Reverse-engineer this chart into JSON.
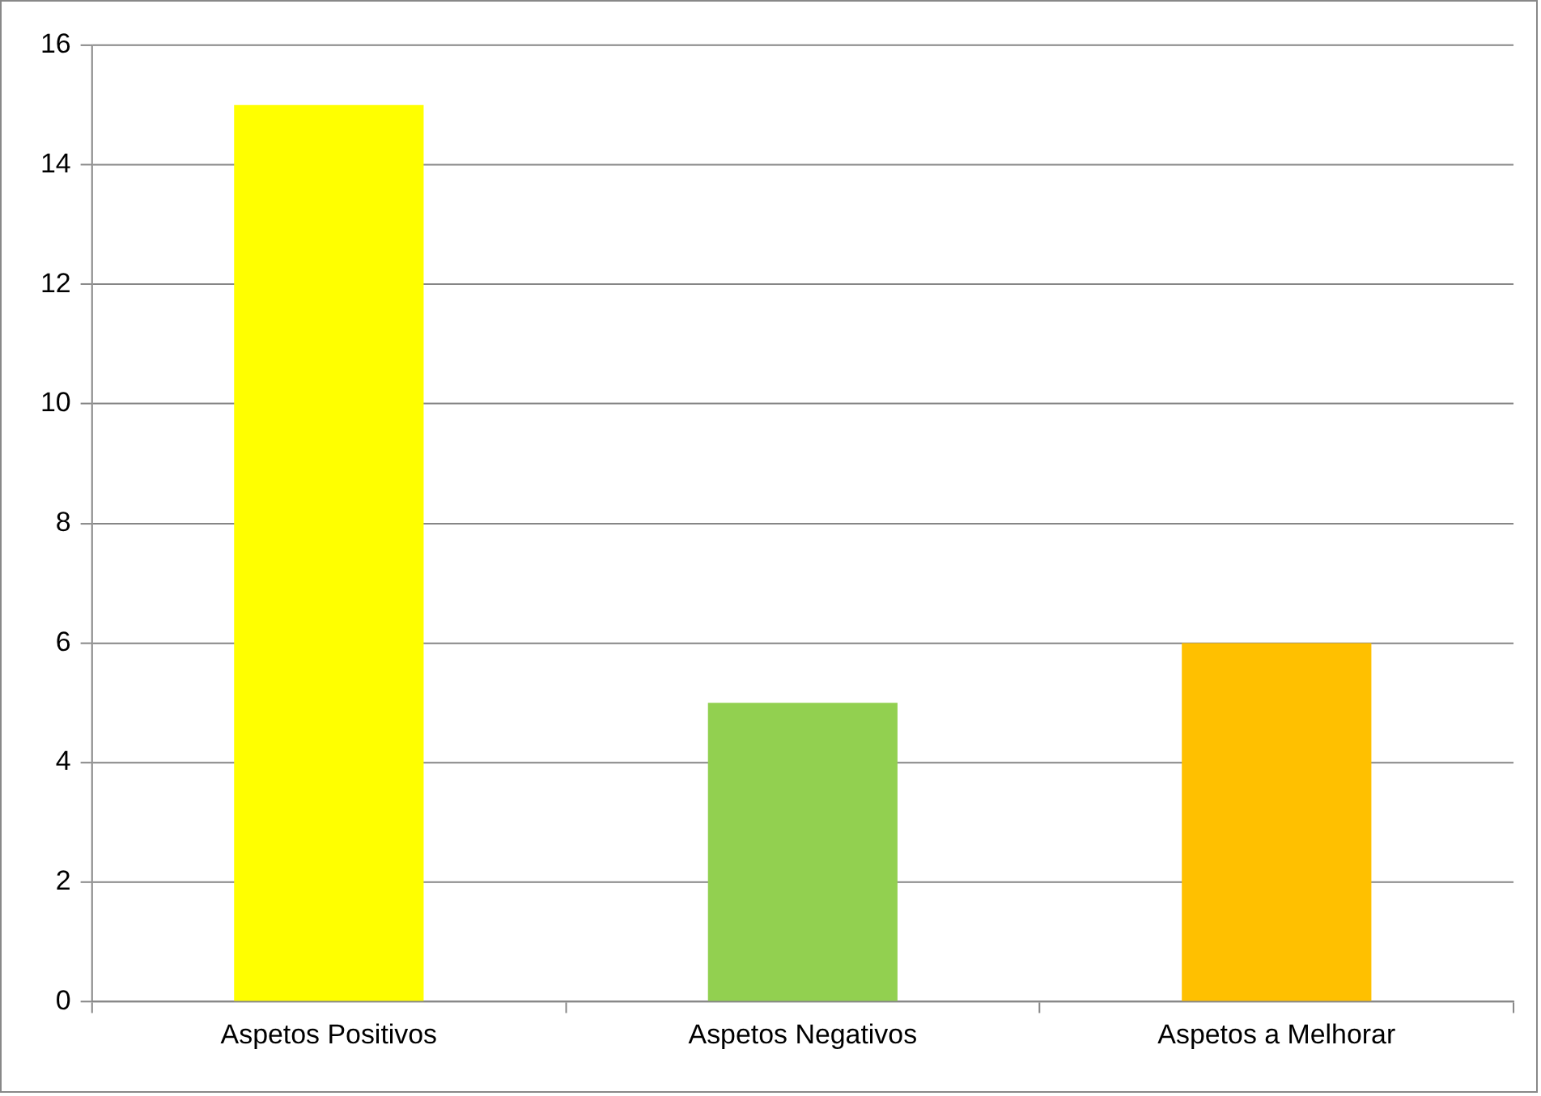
{
  "chart_data": {
    "type": "bar",
    "categories": [
      "Aspetos Positivos",
      "Aspetos Negativos",
      "Aspetos a Melhorar"
    ],
    "values": [
      15,
      5,
      6
    ],
    "colors": [
      "#ffff00",
      "#92d050",
      "#ffc000"
    ],
    "ylim": [
      0,
      16
    ],
    "yticks": [
      0,
      2,
      4,
      6,
      8,
      10,
      12,
      14,
      16
    ],
    "grid": "y",
    "legend": false
  }
}
